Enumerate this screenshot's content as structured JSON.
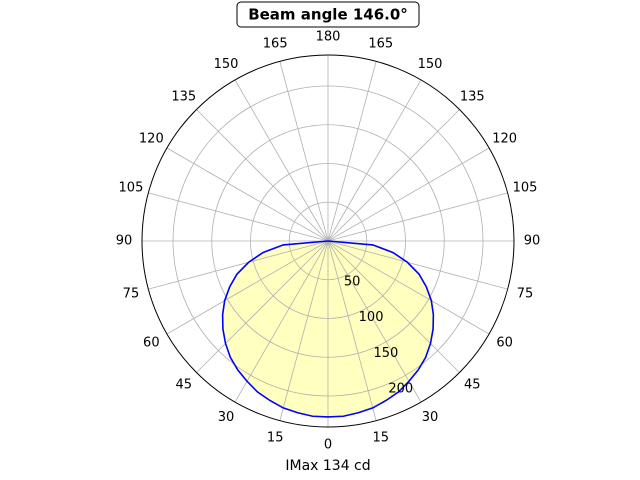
{
  "chart_data": {
    "type": "polar",
    "title": "Beam angle 146.0°",
    "xlabel": "IMax 134 cd",
    "x": [
      -90,
      -85,
      -80,
      -75,
      -70,
      -65,
      -60,
      -55,
      -50,
      -45,
      -40,
      -35,
      -30,
      -25,
      -20,
      -15,
      -10,
      -5,
      0,
      5,
      10,
      15,
      20,
      25,
      30,
      35,
      40,
      45,
      50,
      55,
      60,
      65,
      70,
      75,
      80,
      85,
      90
    ],
    "series": [
      {
        "color": "#0000ff",
        "fill": "#ffffc0",
        "values": [
          0,
          58,
          85,
          106,
          125,
          140,
          154,
          166,
          177,
          187,
          196,
          203,
          209,
          215,
          219,
          223,
          225,
          227,
          227,
          227,
          225,
          223,
          219,
          215,
          209,
          203,
          196,
          187,
          177,
          166,
          154,
          140,
          125,
          106,
          85,
          58,
          0
        ]
      }
    ],
    "ylim": [
      0,
      240
    ],
    "yticks": [
      50,
      100,
      150,
      200
    ],
    "xticks": [
      0,
      15,
      30,
      45,
      60,
      75,
      90,
      105,
      120,
      135,
      150,
      165,
      180,
      {
        "value": 195,
        "label": "165"
      },
      {
        "value": 210,
        "label": "150"
      },
      {
        "value": 225,
        "label": "135"
      },
      {
        "value": 240,
        "label": "120"
      },
      {
        "value": 255,
        "label": "105"
      },
      {
        "value": 270,
        "label": "90"
      },
      {
        "value": 285,
        "label": "75"
      },
      {
        "value": 300,
        "label": "60"
      },
      {
        "value": 315,
        "label": "45"
      },
      {
        "value": 330,
        "label": "30"
      },
      {
        "value": 345,
        "label": "15"
      }
    ],
    "grid": true
  }
}
